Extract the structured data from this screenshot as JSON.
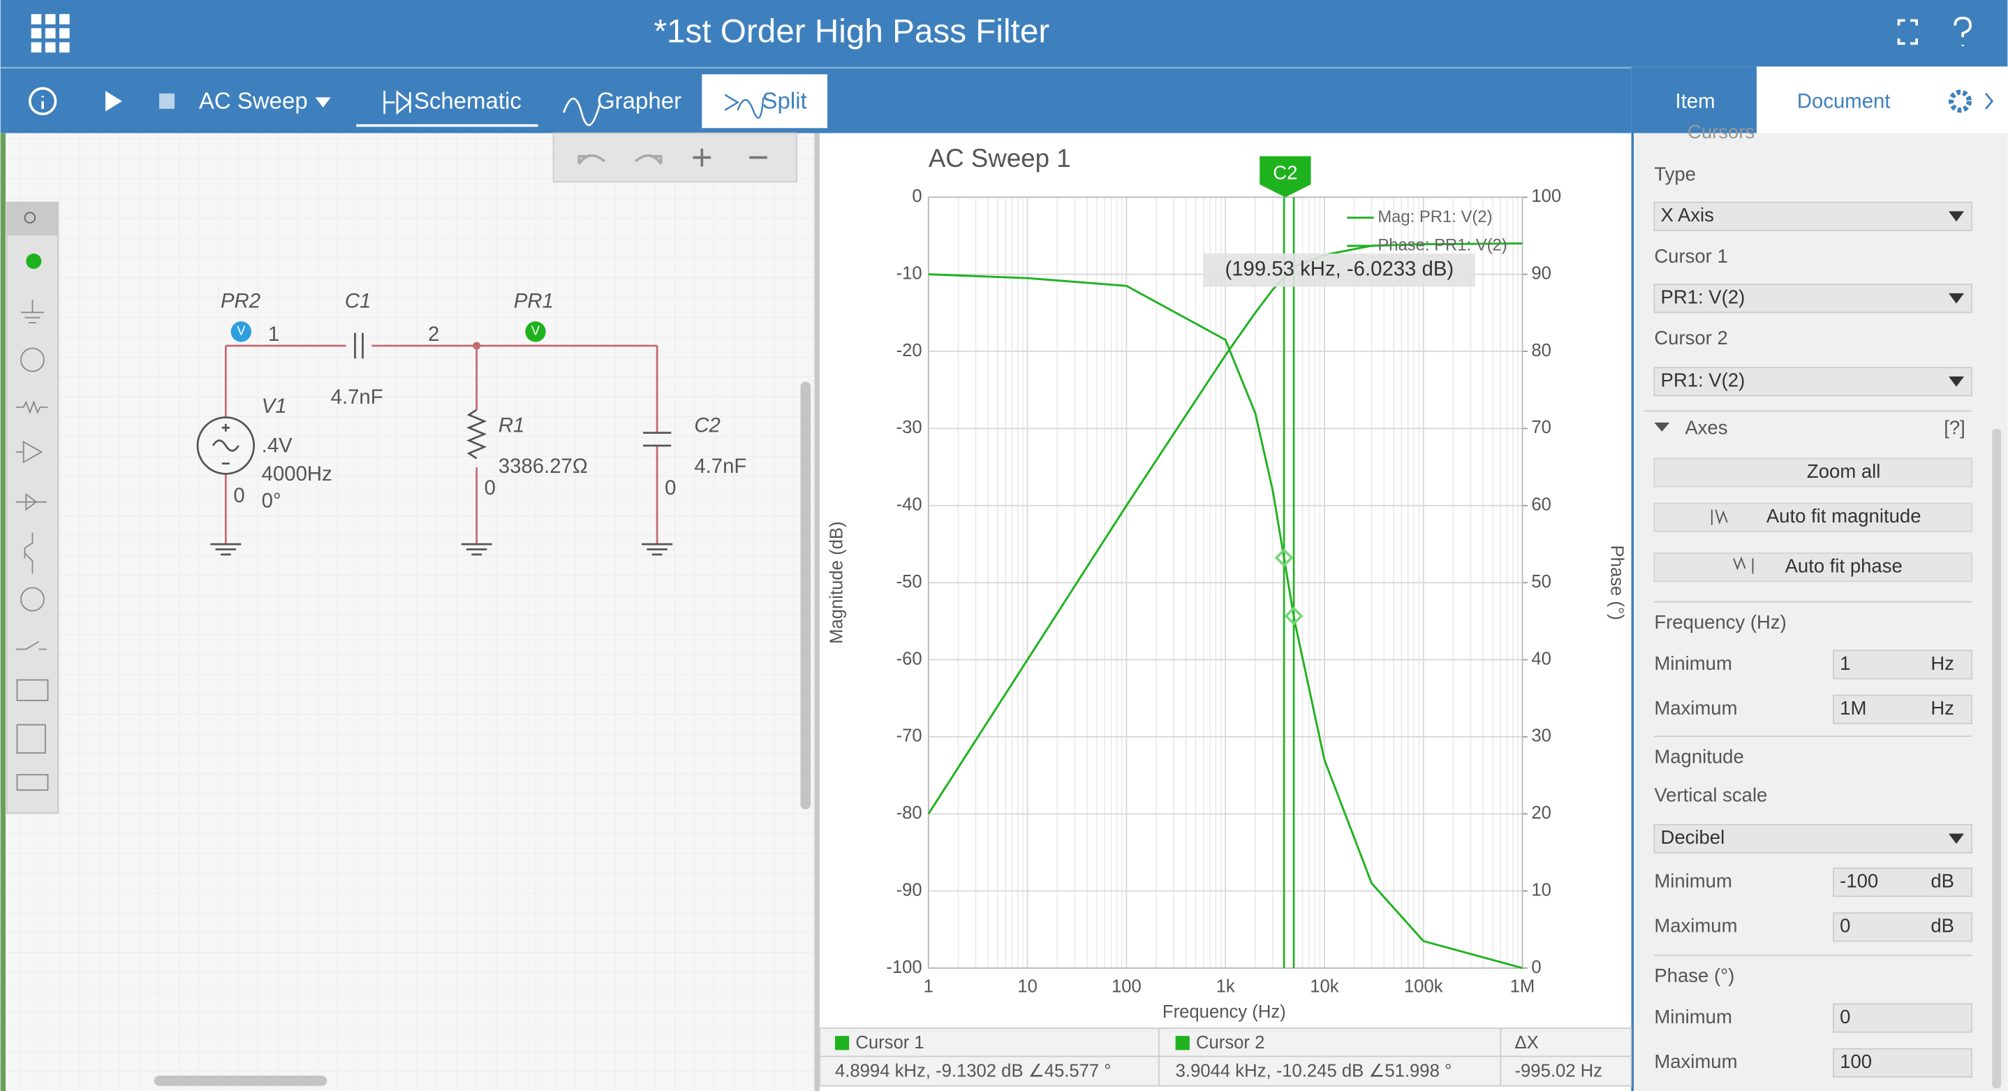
{
  "header": {
    "title": "*1st Order High Pass Filter"
  },
  "toolbar": {
    "analysis": "AC Sweep",
    "tabs": [
      "Schematic",
      "Grapher",
      "Split"
    ]
  },
  "panel_tabs": [
    "Item",
    "Document"
  ],
  "schematic": {
    "probe_badge": "V",
    "pr2": "PR2",
    "node1": "1",
    "c1": "C1",
    "node2": "2",
    "pr1": "PR1",
    "c1_value": "4.7nF",
    "v1": "V1",
    "v1_amp": ".4V",
    "v1_freq": "4000Hz",
    "v1_phase": "0°",
    "v1_ground": "0",
    "r1": "R1",
    "r1_value": "3386.27Ω",
    "r1_ground": "0",
    "c2": "C2",
    "c2_value": "4.7nF",
    "c2_ground": "0"
  },
  "chart": {
    "type": "line",
    "title": "AC Sweep 1",
    "xlabel": "Frequency (Hz)",
    "ylabel": "Magnitude (dB)",
    "y2label": "Phase (°)",
    "log_x": true,
    "grid": true,
    "xlim": [
      1,
      1000000
    ],
    "xticks": [
      1,
      10,
      100,
      {
        "value": 1000,
        "label": "1k"
      },
      {
        "value": 10000,
        "label": "10k"
      },
      {
        "value": 100000,
        "label": "100k"
      },
      {
        "value": 1000000,
        "label": "1M"
      }
    ],
    "ylim": [
      -100,
      0
    ],
    "yticks": [
      0,
      -10,
      -20,
      -30,
      -40,
      -50,
      -60,
      -70,
      -80,
      -90,
      -100
    ],
    "y2lim": [
      0,
      100
    ],
    "y2ticks": [
      100,
      90,
      80,
      70,
      60,
      50,
      40,
      30,
      20,
      10,
      0
    ],
    "x": [
      1,
      10,
      100,
      1000,
      2000,
      3000,
      5000,
      10000,
      30000,
      100000,
      1000000
    ],
    "series": [
      {
        "name": "Mag: PR1: V(2)",
        "color": "#1fb21f",
        "values": [
          -80,
          -60,
          -40,
          -20.5,
          -15,
          -12,
          -9,
          -7.5,
          -6.3,
          -6.1,
          -6
        ]
      },
      {
        "name": "Phase: PR1: V(2)",
        "color": "#1fb21f",
        "axis": "y2",
        "values": [
          90,
          89.5,
          88.5,
          81.5,
          72,
          62,
          45,
          27,
          11,
          3.5,
          0
        ]
      }
    ],
    "cursor_marker": "C2",
    "tooltip": "(199.53 kHz, -6.0233 dB)",
    "cursor_x": [
      4899.4,
      3904.4
    ]
  },
  "cursors_table": {
    "headers": [
      "Cursor 1",
      "Cursor 2",
      "ΔX"
    ],
    "values": [
      "4.8994 kHz, -9.1302 dB ∠45.577 °",
      "3.9044 kHz, -10.245 dB ∠51.998 °",
      "-995.02 Hz"
    ]
  },
  "panel": {
    "section_cut": "Cursors",
    "type_label": "Type",
    "type_value": "X Axis",
    "cursor1_label": "Cursor 1",
    "cursor1_value": "PR1: V(2)",
    "cursor2_label": "Cursor 2",
    "cursor2_value": "PR1: V(2)",
    "axes_label": "Axes",
    "help": "[?]",
    "zoom_all": "Zoom all",
    "auto_mag": "Auto fit magnitude",
    "auto_phase": "Auto fit phase",
    "freq_label": "Frequency (Hz)",
    "min_label": "Minimum",
    "max_label": "Maximum",
    "freq_min": "1",
    "freq_max": "1M",
    "hz": "Hz",
    "mag_label": "Magnitude",
    "vscale_label": "Vertical scale",
    "vscale_value": "Decibel",
    "mag_min": "-100",
    "mag_max": "0",
    "db": "dB",
    "phase_label": "Phase (°)",
    "phase_min": "0",
    "phase_max": "100"
  }
}
